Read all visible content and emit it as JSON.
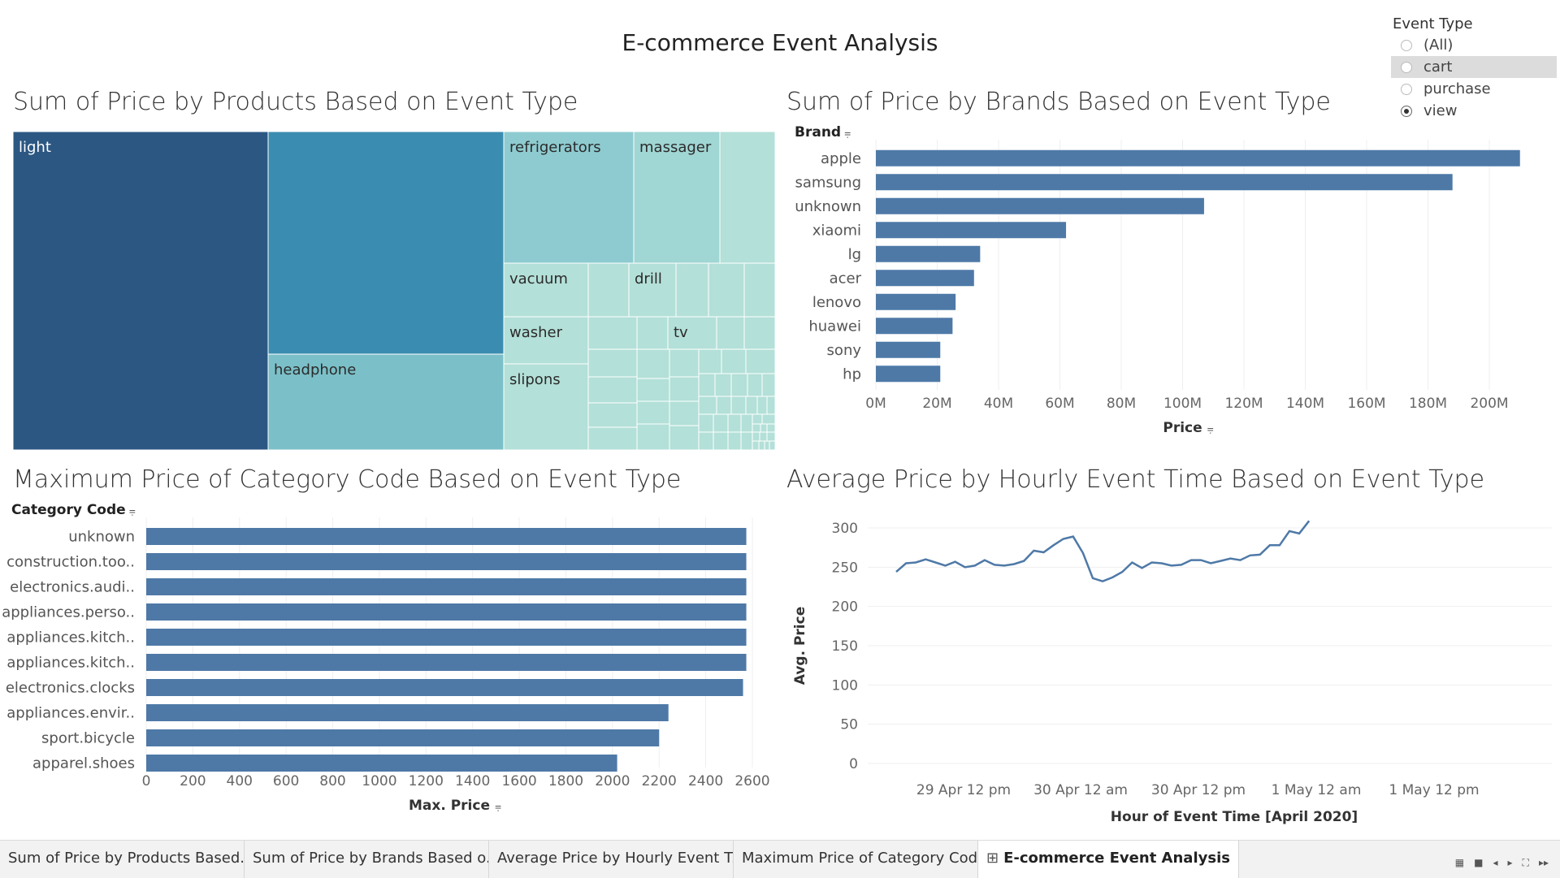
{
  "dashboard": {
    "title": "E-commerce Event Analysis"
  },
  "filter": {
    "title": "Event Type",
    "options": [
      {
        "label": "(All)",
        "selected": false
      },
      {
        "label": "cart",
        "selected": false
      },
      {
        "label": "purchase",
        "selected": false
      },
      {
        "label": "view",
        "selected": true
      }
    ]
  },
  "panels": {
    "treemap_title": "Sum of Price by Products Based on Event Type",
    "brands_title": "Sum of Price by Brands Based on Event Type",
    "category_title": "Maximum Price of Category Code Based on Event Type",
    "hourly_title": "Average Price by Hourly Event Time Based on Event Type"
  },
  "colors": {
    "bar": "#4e79a7",
    "treemap_scale": [
      "#2c5783",
      "#3a8db0",
      "#7bc0c8",
      "#8ecbd0",
      "#a0d6d3",
      "#b3e0d8"
    ]
  },
  "chart_data": [
    {
      "type": "treemap",
      "title": "Sum of Price by Products Based on Event Type",
      "labels": [
        "light",
        "headphone",
        "refrigerators",
        "massager",
        "vacuum",
        "drill",
        "washer",
        "tv",
        "slipons"
      ]
    },
    {
      "type": "bar",
      "title": "Sum of Price by Brands Based on Event Type",
      "ylabel": "Brand",
      "xlabel": "Price",
      "categories": [
        "apple",
        "samsung",
        "unknown",
        "xiaomi",
        "lg",
        "acer",
        "lenovo",
        "huawei",
        "sony",
        "hp"
      ],
      "values": [
        210,
        188,
        107,
        62,
        34,
        32,
        26,
        25,
        21,
        21
      ],
      "value_unit": "M",
      "ticks": [
        "0M",
        "20M",
        "40M",
        "60M",
        "80M",
        "100M",
        "120M",
        "140M",
        "160M",
        "180M",
        "200M"
      ],
      "xlim": [
        0,
        200
      ]
    },
    {
      "type": "bar",
      "title": "Maximum Price of Category Code Based on Event Type",
      "ylabel": "Category Code",
      "xlabel": "Max. Price",
      "categories": [
        "unknown",
        "construction.too..",
        "electronics.audi..",
        "appliances.perso..",
        "appliances.kitch..",
        "appliances.kitch..",
        "electronics.clocks",
        "appliances.envir..",
        "sport.bicycle",
        "apparel.shoes"
      ],
      "values": [
        2574,
        2574,
        2574,
        2574,
        2574,
        2574,
        2560,
        2240,
        2200,
        2020
      ],
      "ticks": [
        "0",
        "200",
        "400",
        "600",
        "800",
        "1000",
        "1200",
        "1400",
        "1600",
        "1800",
        "2000",
        "2200",
        "2400",
        "2600"
      ],
      "xlim": [
        0,
        2600
      ]
    },
    {
      "type": "line",
      "title": "Average Price by Hourly Event Time Based on Event Type",
      "xlabel": "Hour of Event Time [April 2020]",
      "ylabel": "Avg. Price",
      "y_ticks": [
        "0",
        "50",
        "100",
        "150",
        "200",
        "250",
        "300"
      ],
      "ylim": [
        0,
        300
      ],
      "x_ticks": [
        "29 Apr 12 pm",
        "30 Apr 12 am",
        "30 Apr 12 pm",
        "1 May 12 am",
        "1 May 12 pm"
      ],
      "series": [
        {
          "values": [
            244,
            255,
            256,
            260,
            256,
            252,
            257,
            250,
            252,
            259,
            253,
            252,
            254,
            258,
            271,
            269,
            278,
            286,
            289,
            268,
            236,
            232,
            237,
            244,
            256,
            249,
            256,
            255,
            252,
            253,
            259,
            259,
            255,
            258,
            261,
            259,
            265,
            266,
            278,
            278,
            296,
            293,
            309
          ]
        }
      ]
    }
  ],
  "tabs": [
    "Sum of Price by Products Based...",
    "Sum of Price by Brands Based o...",
    "Average Price by Hourly Event T...",
    "Maximum Price of Category Cod...",
    "E-commerce Event Analysis"
  ],
  "tab_icon": "dashboard-grid-icon"
}
